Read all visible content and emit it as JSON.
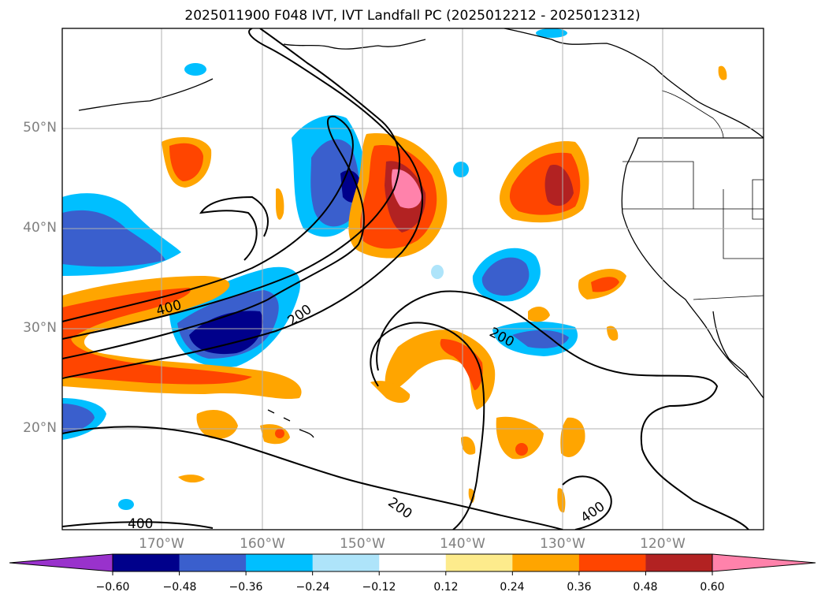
{
  "title": "2025011900 F048 IVT, IVT Landfall PC (2025012212 - 2025012312)",
  "lat_labels": [
    "50°N",
    "40°N",
    "30°N",
    "20°N"
  ],
  "lon_labels": [
    "170°W",
    "160°W",
    "150°W",
    "140°W",
    "130°W",
    "120°W"
  ],
  "contour_labels": [
    "400",
    "200",
    "200",
    "200",
    "400",
    "400"
  ],
  "colorbar": {
    "colors": [
      "#9932CC",
      "#00008B",
      "#3A5FCD",
      "#00BFFF",
      "#AEE4FA",
      "#FFFFFF",
      "#FDEB8C",
      "#FFA500",
      "#FF4500",
      "#B22222",
      "#FF82AB"
    ],
    "tick_labels": [
      "−0.60",
      "−0.48",
      "−0.36",
      "−0.24",
      "−0.12",
      "0.12",
      "0.24",
      "0.36",
      "0.48",
      "0.60"
    ]
  }
}
